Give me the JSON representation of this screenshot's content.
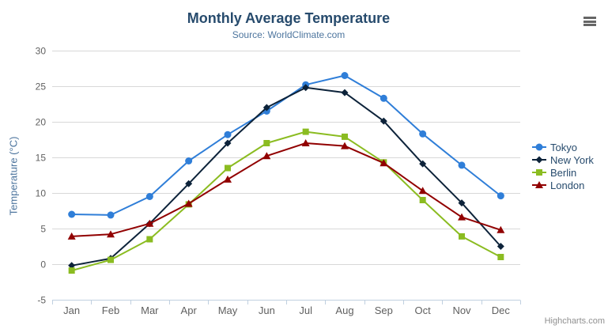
{
  "chart_data": {
    "type": "line",
    "title": "Monthly Average Temperature",
    "subtitle": "Source: WorldClimate.com",
    "xlabel": "",
    "ylabel": "Temperature (°C)",
    "categories": [
      "Jan",
      "Feb",
      "Mar",
      "Apr",
      "May",
      "Jun",
      "Jul",
      "Aug",
      "Sep",
      "Oct",
      "Nov",
      "Dec"
    ],
    "yticks": [
      -5,
      0,
      5,
      10,
      15,
      20,
      25,
      30
    ],
    "ylim": [
      -5,
      30
    ],
    "grid": true,
    "legend_position": "right",
    "series": [
      {
        "name": "Tokyo",
        "color": "#2f7ed8",
        "marker": "circle",
        "values": [
          7.0,
          6.9,
          9.5,
          14.5,
          18.2,
          21.5,
          25.2,
          26.5,
          23.3,
          18.3,
          13.9,
          9.6
        ]
      },
      {
        "name": "New York",
        "color": "#0d233a",
        "marker": "diamond",
        "values": [
          -0.2,
          0.8,
          5.7,
          11.3,
          17.0,
          22.0,
          24.8,
          24.1,
          20.1,
          14.1,
          8.6,
          2.5
        ]
      },
      {
        "name": "Berlin",
        "color": "#8bbc21",
        "marker": "square",
        "values": [
          -0.9,
          0.6,
          3.5,
          8.4,
          13.5,
          17.0,
          18.6,
          17.9,
          14.3,
          9.0,
          3.9,
          1.0
        ]
      },
      {
        "name": "London",
        "color": "#910000",
        "marker": "triangle",
        "values": [
          3.9,
          4.2,
          5.7,
          8.5,
          11.9,
          15.2,
          17.0,
          16.6,
          14.2,
          10.3,
          6.6,
          4.8
        ]
      }
    ]
  },
  "header": {
    "menu_icon": "hamburger-export-menu"
  },
  "credits": {
    "label": "Highcharts.com"
  },
  "colors": {
    "title": "#274b6d",
    "subtitle": "#4d759e",
    "axis_title": "#4d759e",
    "axis_label": "#606060",
    "grid_line": "#d8d8d8",
    "axis_line": "#c0d0e0",
    "legend_text": "#274b6d",
    "credits_text": "#909090",
    "menu_icon": "#666666",
    "background": "#ffffff"
  }
}
